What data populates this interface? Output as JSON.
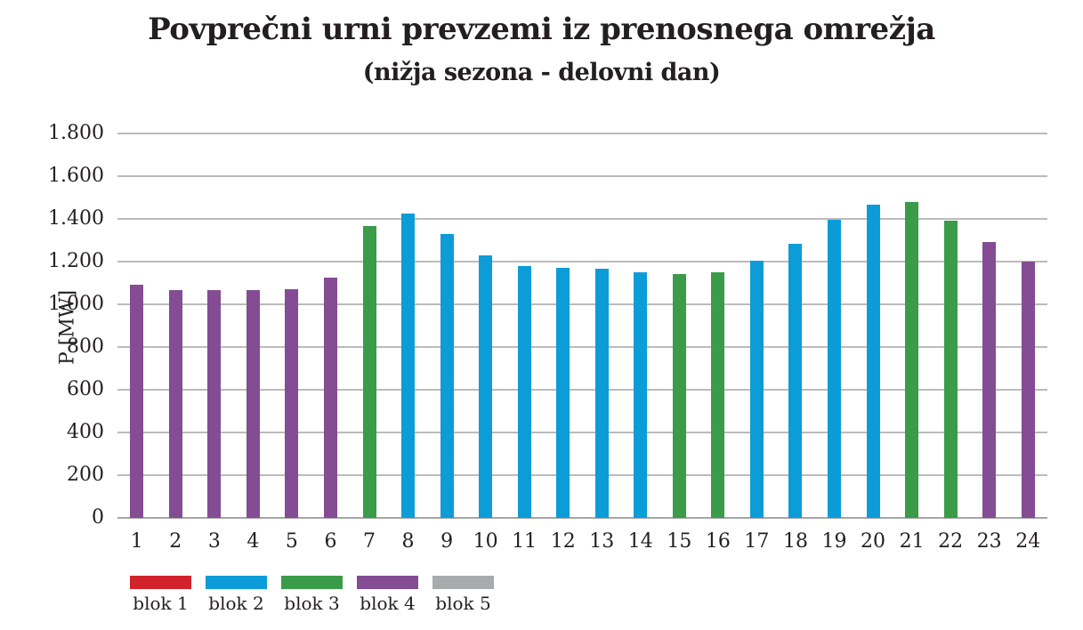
{
  "chart_data": {
    "type": "bar",
    "title": "Povprečni urni prevzemi iz prenosnega omrežja",
    "subtitle": "(nižja sezona - delovni dan)",
    "ylabel": "P [MW]",
    "xlabel": "",
    "ylim": [
      0,
      1800
    ],
    "ytick_step": 200,
    "ytick_labels": [
      "0",
      "200",
      "400",
      "600",
      "800",
      "1.000",
      "1.200",
      "1.400",
      "1.600",
      "1.800"
    ],
    "grid": true,
    "legend_position": "bottom",
    "categories": [
      "1",
      "2",
      "3",
      "4",
      "5",
      "6",
      "7",
      "8",
      "9",
      "10",
      "11",
      "12",
      "13",
      "14",
      "15",
      "16",
      "17",
      "18",
      "19",
      "20",
      "21",
      "22",
      "23",
      "24"
    ],
    "values": [
      1090,
      1065,
      1065,
      1065,
      1070,
      1125,
      1365,
      1425,
      1330,
      1230,
      1180,
      1170,
      1165,
      1150,
      1140,
      1150,
      1205,
      1285,
      1395,
      1465,
      1480,
      1390,
      1290,
      1200
    ],
    "blocks": [
      "blok 4",
      "blok 4",
      "blok 4",
      "blok 4",
      "blok 4",
      "blok 4",
      "blok 3",
      "blok 2",
      "blok 2",
      "blok 2",
      "blok 2",
      "blok 2",
      "blok 2",
      "blok 2",
      "blok 3",
      "blok 3",
      "blok 2",
      "blok 2",
      "blok 2",
      "blok 2",
      "blok 3",
      "blok 3",
      "blok 4",
      "blok 4"
    ],
    "series_colors": {
      "blok 1": "#d2222b",
      "blok 2": "#0c9cd8",
      "blok 3": "#3a9b48",
      "blok 4": "#834c93",
      "blok 5": "#a9aaae"
    },
    "legend": [
      {
        "label": "blok 1",
        "color": "#d2222b"
      },
      {
        "label": "blok 2",
        "color": "#0c9cd8"
      },
      {
        "label": "blok 3",
        "color": "#3a9b48"
      },
      {
        "label": "blok 4",
        "color": "#834c93"
      },
      {
        "label": "blok 5",
        "color": "#a9aaae"
      }
    ]
  },
  "style_colors": {
    "gridline": "#bbbbbb",
    "baseline": "#a5a5a5",
    "text": "#231f20"
  }
}
